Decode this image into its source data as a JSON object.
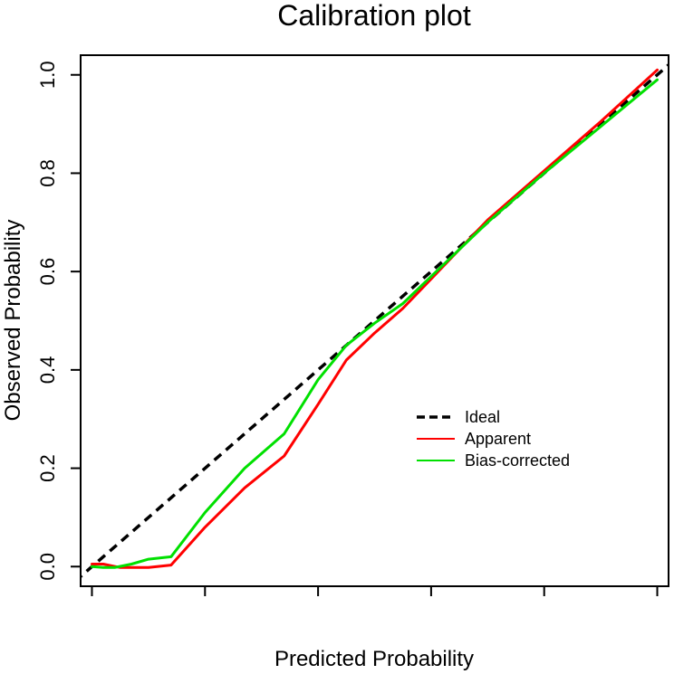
{
  "chart_data": {
    "type": "line",
    "title": "Calibration plot",
    "xlabel": "Predicted Probability",
    "ylabel": "Observed Probability",
    "xlim": [
      -0.02,
      1.02
    ],
    "ylim": [
      -0.04,
      1.04
    ],
    "x_ticks": [
      0,
      0.2,
      0.4,
      0.6,
      0.8,
      1.0
    ],
    "x_tick_labels": [],
    "y_ticks": [
      0,
      0.2,
      0.4,
      0.6,
      0.8,
      1.0
    ],
    "y_tick_labels": [
      "0.0",
      "0.2",
      "0.4",
      "0.6",
      "0.8",
      "1.0"
    ],
    "legend_position": "center-right",
    "grid": false,
    "series": [
      {
        "name": "Ideal",
        "color": "#000000",
        "style": "dashed",
        "x": [
          -0.03,
          1.03
        ],
        "y": [
          -0.03,
          1.03
        ]
      },
      {
        "name": "Apparent",
        "color": "#ff0000",
        "style": "solid",
        "x": [
          0.0,
          0.02,
          0.05,
          0.1,
          0.14,
          0.2,
          0.27,
          0.34,
          0.4,
          0.45,
          0.5,
          0.55,
          0.6,
          0.65,
          0.7,
          0.8,
          0.9,
          1.0
        ],
        "y": [
          0.005,
          0.005,
          -0.002,
          -0.002,
          0.003,
          0.08,
          0.16,
          0.225,
          0.33,
          0.42,
          0.475,
          0.525,
          0.585,
          0.645,
          0.705,
          0.805,
          0.905,
          1.01
        ]
      },
      {
        "name": "Bias-corrected",
        "color": "#00e000",
        "style": "solid",
        "x": [
          0.0,
          0.02,
          0.04,
          0.07,
          0.1,
          0.14,
          0.2,
          0.27,
          0.34,
          0.4,
          0.45,
          0.5,
          0.55,
          0.6,
          0.65,
          0.7,
          0.8,
          0.9,
          1.0
        ],
        "y": [
          0.0,
          -0.002,
          -0.002,
          0.005,
          0.015,
          0.02,
          0.11,
          0.2,
          0.27,
          0.38,
          0.45,
          0.495,
          0.535,
          0.59,
          0.645,
          0.7,
          0.8,
          0.895,
          0.99
        ]
      }
    ]
  }
}
